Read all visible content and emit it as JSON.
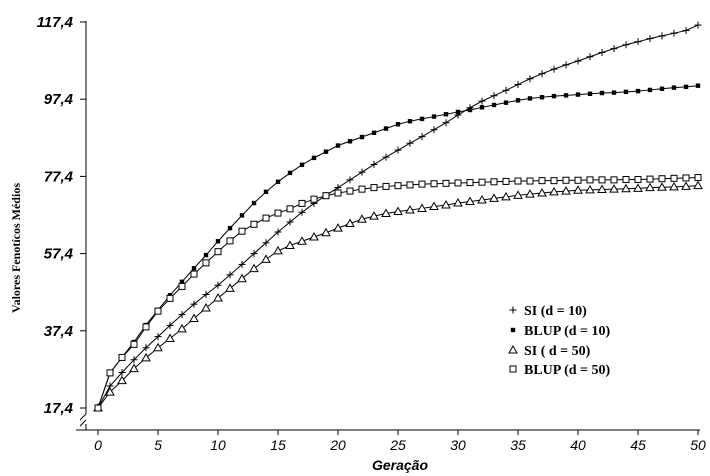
{
  "chart_data": {
    "type": "line",
    "title": "",
    "xlabel": "Geração",
    "ylabel": "Valores Fenotícos Médios",
    "xlim": [
      0,
      50
    ],
    "ylim": [
      17.4,
      117.4
    ],
    "x_ticks": [
      "0",
      "5",
      "10",
      "15",
      "20",
      "25",
      "30",
      "35",
      "40",
      "45",
      "50"
    ],
    "y_ticks": [
      "17,4",
      "37,4",
      "57,4",
      "77,4",
      "97,4",
      "117,4"
    ],
    "legend_position": "bottom-right",
    "grid": false,
    "x": [
      0,
      1,
      2,
      3,
      4,
      5,
      6,
      7,
      8,
      9,
      10,
      11,
      12,
      13,
      14,
      15,
      16,
      17,
      18,
      19,
      20,
      21,
      22,
      23,
      24,
      25,
      26,
      27,
      28,
      29,
      30,
      31,
      32,
      33,
      34,
      35,
      36,
      37,
      38,
      39,
      40,
      41,
      42,
      43,
      44,
      45,
      46,
      47,
      48,
      49,
      50
    ],
    "series": [
      {
        "name": "SI (d = 10)",
        "marker": "plus",
        "values": [
          17.4,
          23.1,
          26.6,
          29.9,
          33.0,
          35.9,
          38.8,
          41.6,
          44.3,
          46.8,
          49.2,
          51.9,
          54.6,
          57.4,
          60.2,
          63.0,
          65.6,
          68.1,
          70.4,
          72.5,
          74.5,
          76.5,
          78.5,
          80.5,
          82.4,
          84.2,
          86.0,
          87.7,
          89.5,
          91.3,
          93.3,
          95.2,
          96.9,
          98.3,
          99.7,
          101.2,
          102.7,
          104.0,
          105.2,
          106.3,
          107.3,
          108.4,
          109.5,
          110.5,
          111.5,
          112.3,
          113.1,
          113.8,
          114.5,
          115.2,
          116.6
        ]
      },
      {
        "name": "BLUP (d = 10)",
        "marker": "filled-square",
        "values": [
          17.4,
          26.5,
          30.5,
          34.5,
          38.9,
          42.8,
          46.6,
          50.1,
          53.6,
          57.0,
          60.6,
          64.0,
          67.3,
          70.5,
          73.4,
          76.0,
          78.3,
          80.4,
          82.2,
          83.8,
          85.4,
          86.5,
          87.6,
          88.7,
          89.8,
          90.9,
          91.7,
          92.3,
          92.9,
          93.5,
          94.1,
          94.6,
          95.3,
          95.9,
          96.5,
          97.1,
          97.6,
          97.9,
          98.2,
          98.4,
          98.6,
          98.8,
          99.0,
          99.1,
          99.3,
          99.5,
          99.8,
          100.1,
          100.4,
          100.6,
          100.9
        ]
      },
      {
        "name": "SI ( d = 50)",
        "marker": "open-triangle",
        "values": [
          17.4,
          21.5,
          24.5,
          27.6,
          30.4,
          33.0,
          35.4,
          37.9,
          40.6,
          43.3,
          45.9,
          48.4,
          50.9,
          53.5,
          55.9,
          58.1,
          59.5,
          60.6,
          61.7,
          62.8,
          64.0,
          65.2,
          66.3,
          67.1,
          67.8,
          68.3,
          68.7,
          69.1,
          69.6,
          70.0,
          70.5,
          70.9,
          71.3,
          71.7,
          72.1,
          72.5,
          72.8,
          73.1,
          73.4,
          73.6,
          73.8,
          73.9,
          74.0,
          74.1,
          74.2,
          74.3,
          74.5,
          74.6,
          74.7,
          74.8,
          75.0
        ]
      },
      {
        "name": "BLUP (d = 50)",
        "marker": "open-square",
        "values": [
          17.4,
          26.5,
          30.5,
          33.9,
          38.4,
          42.5,
          45.8,
          48.9,
          52.1,
          55.0,
          57.9,
          60.7,
          63.2,
          65.0,
          66.6,
          67.9,
          69.0,
          70.4,
          71.5,
          72.4,
          73.1,
          73.6,
          74.1,
          74.5,
          74.8,
          75.0,
          75.2,
          75.4,
          75.5,
          75.6,
          75.7,
          75.8,
          75.9,
          76.0,
          76.1,
          76.2,
          76.2,
          76.3,
          76.3,
          76.4,
          76.4,
          76.5,
          76.5,
          76.5,
          76.6,
          76.6,
          76.7,
          76.8,
          76.9,
          77.0,
          77.1
        ]
      }
    ]
  }
}
